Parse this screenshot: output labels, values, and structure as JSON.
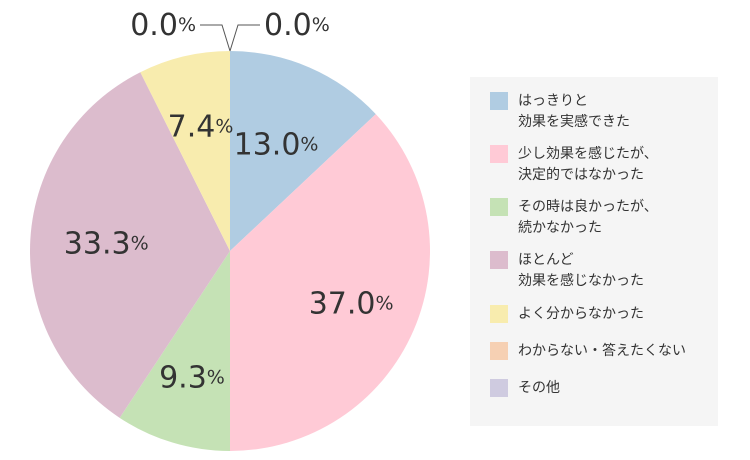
{
  "chart_data": {
    "type": "pie",
    "categories": [
      "はっきりと\n効果を実感できた",
      "少し効果を感じたが、\n決定的ではなかった",
      "その時は良かったが、\n続かなかった",
      "ほとんど\n効果を感じなかった",
      "よく分からなかった",
      "わからない・答えたくない",
      "その他"
    ],
    "values": [
      13.0,
      37.0,
      9.3,
      33.3,
      7.4,
      0.0,
      0.0
    ],
    "labels": [
      "13.0",
      "37.0",
      "9.3",
      "33.3",
      "7.4",
      "0.0",
      "0.0"
    ],
    "unit": "%",
    "colors": [
      "#b0cce2",
      "#ffcad6",
      "#c5e2b5",
      "#dcbccd",
      "#f8ecae",
      "#f6d0b3",
      "#cfcbe0"
    ],
    "legend_position": "right"
  }
}
